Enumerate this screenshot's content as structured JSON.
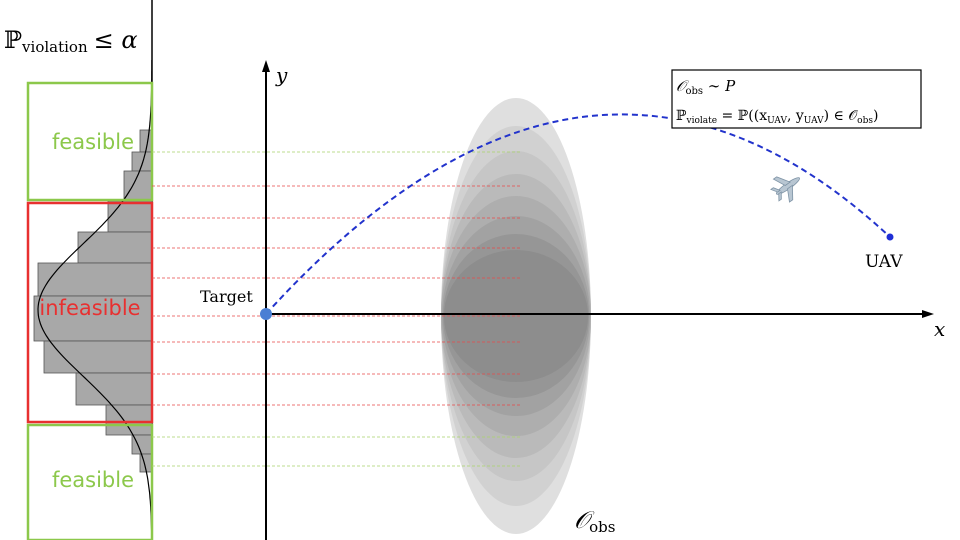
{
  "histogram_header": {
    "symbol": "ℙ",
    "subscript": "violation",
    "relation": "≤ α"
  },
  "regions": {
    "top_label": "feasible",
    "middle_label": "infeasible",
    "bottom_label": "feasible",
    "feasible_color": "#8cc84b",
    "infeasible_color": "#e83030"
  },
  "axes": {
    "x_label": "x",
    "y_label": "y"
  },
  "target": {
    "label": "Target",
    "color": "#4a7fd4"
  },
  "uav": {
    "label": "UAV",
    "color": "#1f2fd6"
  },
  "trajectory_color": "#2233cc",
  "obstacle": {
    "symbol": "𝒪",
    "subscript": "obs"
  },
  "legend": {
    "line1_symbol": "𝒪",
    "line1_subscript": "obs",
    "line1_rest": " ∼ P",
    "line2_symbol": "ℙ",
    "line2_subscript": "violate",
    "line2_eq": " = ℙ((x",
    "line2_sub_x": "UAV",
    "line2_comma": ", y",
    "line2_sub_y": "UAV",
    "line2_in": ") ∈ 𝒪",
    "line2_sub_obs": "obs",
    "line2_close": ")"
  }
}
